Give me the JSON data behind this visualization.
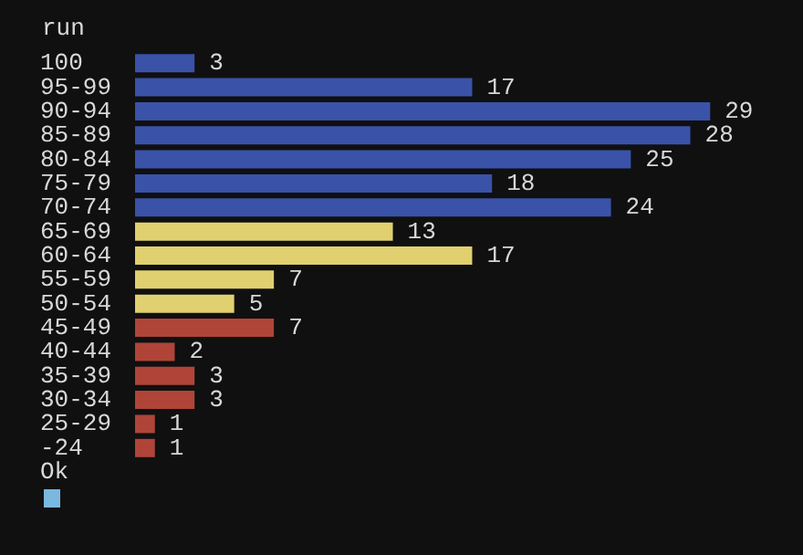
{
  "chart_data": {
    "type": "bar",
    "orientation": "horizontal",
    "title": "run",
    "categories": [
      "100",
      "95-99",
      "90-94",
      "85-89",
      "80-84",
      "75-79",
      "70-74",
      "65-69",
      "60-64",
      "55-59",
      "50-54",
      "45-49",
      "40-44",
      "35-39",
      "30-34",
      "25-29",
      "-24"
    ],
    "values": [
      3,
      17,
      29,
      28,
      25,
      18,
      24,
      13,
      17,
      7,
      5,
      7,
      2,
      3,
      3,
      1,
      1
    ],
    "colors": [
      "#3a52a8",
      "#3a52a8",
      "#3a52a8",
      "#3a52a8",
      "#3a52a8",
      "#3a52a8",
      "#3a52a8",
      "#e0d070",
      "#e0d070",
      "#e0d070",
      "#e0d070",
      "#b04438",
      "#b04438",
      "#b04438",
      "#b04438",
      "#b04438",
      "#b04438"
    ],
    "data_labels": true,
    "annotations": [
      "Ok"
    ]
  }
}
